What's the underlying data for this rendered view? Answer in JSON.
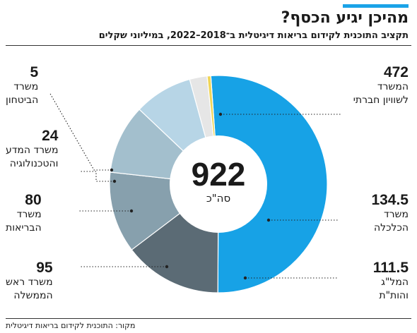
{
  "header": {
    "title": "מהיכן יגיע הכסף?",
    "subtitle": "תקציב התוכנית לקידום בריאות דיגיטלית ב־2018–2022, במיליוני שקלים"
  },
  "footer": {
    "source": "מקור: התוכנית לקידום בריאות דיגיטלית"
  },
  "center": {
    "total": "922",
    "unit": "סה\"כ"
  },
  "labels": {
    "s0": {
      "value": "472",
      "line1": "המשרד",
      "line2": "לשוויון חברתי"
    },
    "s1": {
      "value": "134.5",
      "line1": "משרד",
      "line2": "הכלכלה"
    },
    "s2": {
      "value": "111.5",
      "line1": "המל\"ג",
      "line2": "והות\"ת"
    },
    "s3": {
      "value": "95",
      "line1": "משרד ראש",
      "line2": "הממשלה"
    },
    "s4": {
      "value": "80",
      "line1": "משרד",
      "line2": "הבריאות"
    },
    "s5": {
      "value": "24",
      "line1": "משרד המדע",
      "line2": "והטכנולוגיה"
    },
    "s6": {
      "value": "5",
      "line1": "משרד",
      "line2": "הביטחון"
    }
  },
  "chart_data": {
    "type": "pie",
    "title": "מהיכן יגיע הכסף?",
    "subtitle": "תקציב התוכנית לקידום בריאות דיגיטלית ב־2018–2022, במיליוני שקלים",
    "total": 922,
    "series": [
      {
        "name": "המשרד לשוויון חברתי",
        "value": 472,
        "color": "#17a2e6"
      },
      {
        "name": "משרד הכלכלה",
        "value": 134.5,
        "color": "#5b6b75"
      },
      {
        "name": "המל\"ג והות\"ת",
        "value": 111.5,
        "color": "#87a0ad"
      },
      {
        "name": "משרד ראש הממשלה",
        "value": 95,
        "color": "#a3bfcd"
      },
      {
        "name": "משרד הבריאות",
        "value": 80,
        "color": "#b7d5e6"
      },
      {
        "name": "משרד המדע והטכנולוגיה",
        "value": 24,
        "color": "#e6e6e6"
      },
      {
        "name": "משרד הביטחון",
        "value": 5,
        "color": "#f0d558"
      }
    ]
  }
}
